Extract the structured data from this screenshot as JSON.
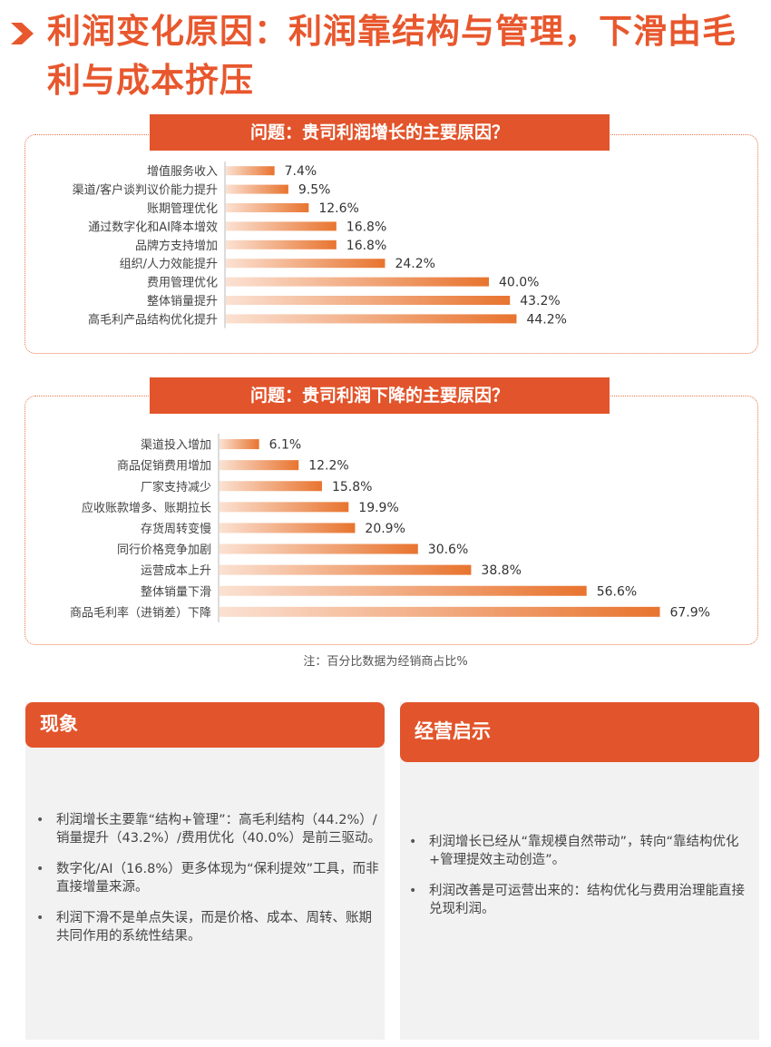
{
  "title": "利润变化原因：利润靠结构与管理，下滑由毛利与成本挤压",
  "colors": {
    "accent": "#e2542b",
    "bar_start": "#fbe1d2",
    "bar_end": "#e8742f"
  },
  "chart_data": [
    {
      "type": "bar",
      "orientation": "horizontal",
      "title": "问题：贵司利润增长的主要原因？",
      "unit": "%",
      "categories": [
        "增值服务收入",
        "渠道/客户谈判议价能力提升",
        "账期管理优化",
        "通过数字化和AI降本增效",
        "品牌方支持增加",
        "组织/人力效能提升",
        "费用管理优化",
        "整体销量提升",
        "高毛利产品结构优化提升"
      ],
      "values": [
        7.4,
        9.5,
        12.6,
        16.8,
        16.8,
        24.2,
        40.0,
        43.2,
        44.2
      ],
      "labels": [
        "7.4%",
        "9.5%",
        "12.6%",
        "16.8%",
        "16.8%",
        "24.2%",
        "40.0%",
        "43.2%",
        "44.2%"
      ],
      "xlim": [
        0,
        50
      ]
    },
    {
      "type": "bar",
      "orientation": "horizontal",
      "title": "问题：贵司利润下降的主要原因？",
      "unit": "%",
      "categories": [
        "渠道投入增加",
        "商品促销费用增加",
        "厂家支持减少",
        "应收账款增多、账期拉长",
        "存货周转变慢",
        "同行价格竞争加剧",
        "运营成本上升",
        "整体销量下滑",
        "商品毛利率（进销差）下降"
      ],
      "values": [
        6.1,
        12.2,
        15.8,
        19.9,
        20.9,
        30.6,
        38.8,
        56.6,
        67.9
      ],
      "labels": [
        "6.1%",
        "12.2%",
        "15.8%",
        "19.9%",
        "20.9%",
        "30.6%",
        "38.8%",
        "56.6%",
        "67.9%"
      ],
      "xlim": [
        0,
        70
      ]
    }
  ],
  "note": "注：百分比数据为经销商占比%",
  "panels": {
    "left": {
      "title": "现象",
      "bullets": [
        "利润增长主要靠“结构+管理”：高毛利结构（44.2%）/销量提升（43.2%）/费用优化（40.0%）是前三驱动。",
        "数字化/AI（16.8%）更多体现为“保利提效”工具，而非直接增量来源。",
        "利润下滑不是单点失误，而是价格、成本、周转、账期共同作用的系统性结果。"
      ]
    },
    "right": {
      "title": "经营启示",
      "bullets": [
        "利润增长已经从“靠规模自然带动”，转向“靠结构优化+管理提效主动创造”。",
        "利润改善是可运营出来的：结构优化与费用治理能直接兑现利润。"
      ]
    }
  }
}
